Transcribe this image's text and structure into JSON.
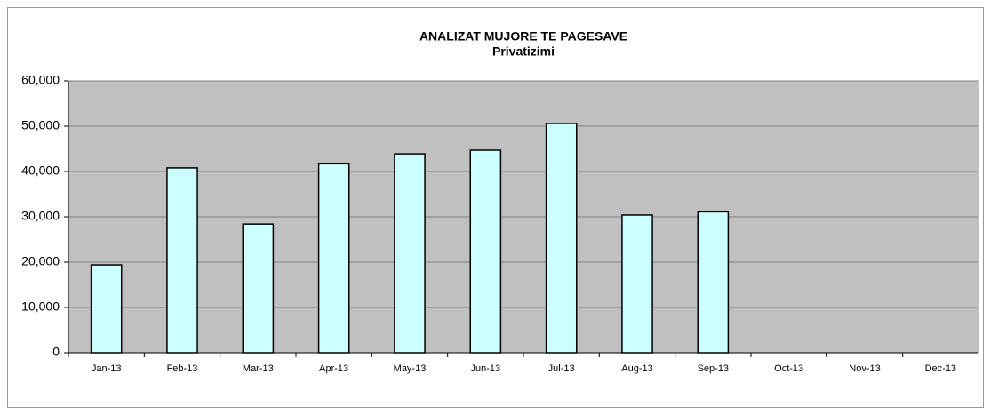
{
  "chart_data": {
    "type": "bar",
    "title": "ANALIZAT MUJORE TE PAGESAVE",
    "subtitle": "Privatizimi",
    "categories": [
      "Jan-13",
      "Feb-13",
      "Mar-13",
      "Apr-13",
      "May-13",
      "Jun-13",
      "Jul-13",
      "Aug-13",
      "Sep-13",
      "Oct-13",
      "Nov-13",
      "Dec-13"
    ],
    "values": [
      19400,
      40800,
      28400,
      41700,
      43900,
      44700,
      50600,
      30400,
      31100,
      null,
      null,
      null
    ],
    "color": "#ccffff",
    "ylim": [
      0,
      60000
    ],
    "yticks": [
      0,
      {
        "value": 10000,
        "label": "10,000"
      },
      {
        "value": 20000,
        "label": "20,000"
      },
      {
        "value": 30000,
        "label": "30,000"
      },
      {
        "value": 40000,
        "label": "40,000"
      },
      {
        "value": 50000,
        "label": "50,000"
      },
      {
        "value": 60000,
        "label": "60,000"
      }
    ],
    "grid": true
  }
}
